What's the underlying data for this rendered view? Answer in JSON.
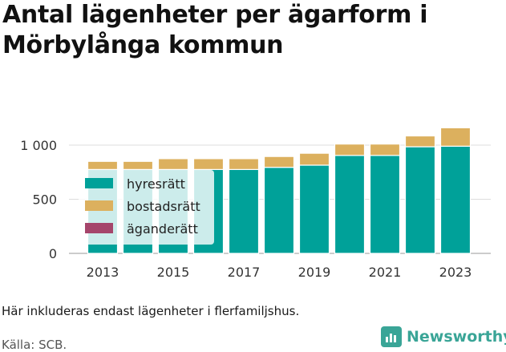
{
  "title": "Antal lägenheter per ägarform i Mörbylånga kommun",
  "note": "Här inkluderas endast lägenheter i flerfamiljshus.",
  "source": "Källa: SCB.",
  "brand": {
    "name": "Newsworthy",
    "color": "#3aa597",
    "icon": "newsworthy-logo-icon"
  },
  "colors": {
    "hyresratt": "#00a199",
    "bostadsratt": "#dcb05e",
    "aganderatt": "#a5456b",
    "grid": "#dddddd",
    "text": "#333333"
  },
  "chart_data": {
    "type": "bar",
    "stacked": true,
    "categories": [
      "2013",
      "2014",
      "2015",
      "2016",
      "2017",
      "2018",
      "2019",
      "2020",
      "2021",
      "2022",
      "2023"
    ],
    "x_tick_labels": [
      "2013",
      "2015",
      "2017",
      "2019",
      "2021",
      "2023"
    ],
    "y_ticks": [
      0,
      500,
      1000
    ],
    "y_tick_labels": [
      "0",
      "500",
      "1 000"
    ],
    "ylim": [
      0,
      1250
    ],
    "grid": true,
    "legend_position": "top-left",
    "series": [
      {
        "name": "hyresrätt",
        "color": "#00a199",
        "values": [
          775,
          775,
          775,
          775,
          775,
          795,
          815,
          905,
          905,
          985,
          990
        ]
      },
      {
        "name": "bostadsrätt",
        "color": "#dcb05e",
        "values": [
          75,
          75,
          100,
          100,
          100,
          100,
          110,
          105,
          105,
          100,
          170
        ]
      },
      {
        "name": "äganderätt",
        "color": "#a5456b",
        "values": [
          0,
          0,
          0,
          0,
          0,
          0,
          0,
          0,
          0,
          0,
          0
        ]
      }
    ]
  }
}
